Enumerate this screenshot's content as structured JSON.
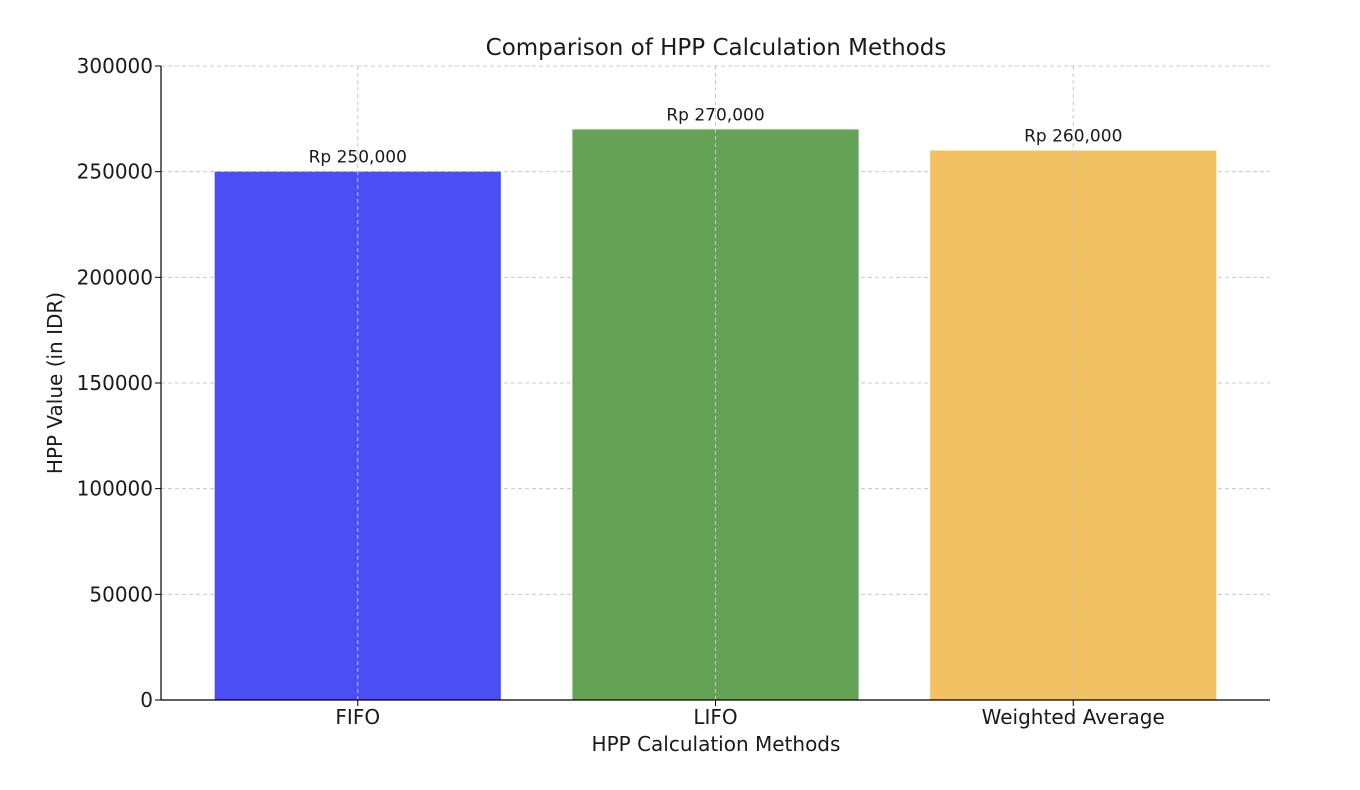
{
  "chart_data": {
    "type": "bar",
    "title": "Comparison of HPP Calculation Methods",
    "xlabel": "HPP Calculation Methods",
    "ylabel": "HPP Value (in IDR)",
    "categories": [
      "FIFO",
      "LIFO",
      "Weighted Average"
    ],
    "values": [
      250000,
      270000,
      260000
    ],
    "data_labels": [
      "Rp 250,000",
      "Rp 270,000",
      "Rp 260,000"
    ],
    "colors": [
      "#4b4ef5",
      "#64a356",
      "#f2c161"
    ],
    "ylim": [
      0,
      300000
    ],
    "yticks": [
      0,
      50000,
      100000,
      150000,
      200000,
      250000,
      300000
    ],
    "grid": true,
    "grid_style": "dashed"
  }
}
